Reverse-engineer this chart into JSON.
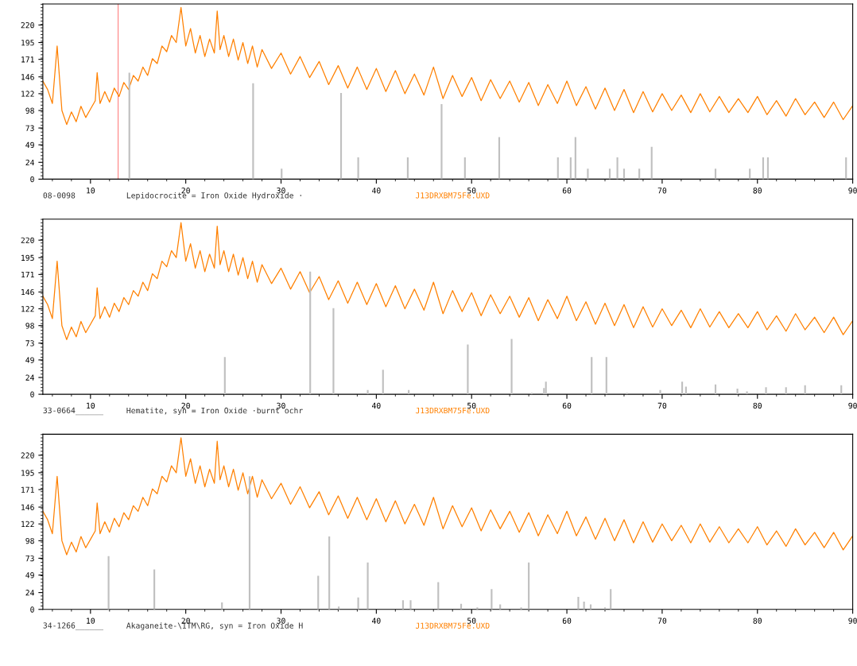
{
  "chart_data": [
    {
      "type": "line",
      "xlim": [
        5,
        90
      ],
      "ylim": [
        0,
        250
      ],
      "xticks": [
        10,
        20,
        30,
        40,
        50,
        60,
        70,
        80,
        90
      ],
      "yticks": [
        0,
        24,
        49,
        73,
        98,
        122,
        146,
        171,
        195,
        220
      ],
      "grid": false,
      "legend": false,
      "annotations": [
        "08-0098",
        "Lepidocrocite = Iron Oxide Hydroxide ·",
        "J13DRXBM75Fe.UXD"
      ],
      "ref_lines": [
        {
          "axis": "x",
          "value": 12.9,
          "color": "#ff8080"
        }
      ],
      "series": [
        {
          "color": "#ff8000",
          "x": [
            5,
            5.5,
            6,
            6.5,
            7,
            7.5,
            8,
            8.5,
            9,
            9.5,
            10,
            10.5,
            10.7,
            11,
            11.5,
            12,
            12.5,
            13,
            13.5,
            14,
            14.5,
            15,
            15.5,
            16,
            16.5,
            17,
            17.5,
            18,
            18.5,
            19,
            19.5,
            20,
            20.5,
            21,
            21.5,
            22,
            22.5,
            23,
            23.3,
            23.6,
            24,
            24.5,
            25,
            25.5,
            26,
            26.5,
            27,
            27.5,
            28,
            29,
            30,
            31,
            32,
            33,
            34,
            35,
            36,
            37,
            38,
            39,
            40,
            41,
            42,
            43,
            44,
            45,
            46,
            47,
            48,
            49,
            50,
            51,
            52,
            53,
            54,
            55,
            56,
            57,
            58,
            59,
            60,
            61,
            62,
            63,
            64,
            65,
            66,
            67,
            68,
            69,
            70,
            71,
            72,
            73,
            74,
            75,
            76,
            77,
            78,
            79,
            80,
            81,
            82,
            83,
            84,
            85,
            86,
            87,
            88,
            89,
            90
          ],
          "values": [
            140,
            128,
            108,
            190,
            98,
            78,
            96,
            82,
            104,
            88,
            100,
            112,
            152,
            108,
            125,
            110,
            130,
            118,
            138,
            128,
            148,
            140,
            160,
            148,
            172,
            165,
            190,
            182,
            205,
            195,
            245,
            190,
            215,
            180,
            205,
            175,
            200,
            180,
            240,
            185,
            205,
            175,
            200,
            170,
            195,
            165,
            190,
            160,
            185,
            158,
            180,
            150,
            175,
            145,
            168,
            135,
            162,
            130,
            160,
            128,
            158,
            125,
            155,
            122,
            150,
            120,
            160,
            115,
            148,
            118,
            145,
            112,
            142,
            115,
            140,
            110,
            138,
            105,
            135,
            108,
            140,
            105,
            132,
            100,
            130,
            98,
            128,
            95,
            125,
            96,
            122,
            98,
            120,
            95,
            122,
            96,
            118,
            95,
            115,
            95,
            118,
            92,
            112,
            90,
            115,
            92,
            110,
            88,
            110,
            85,
            105
          ]
        },
        {
          "type": "bar",
          "color": "#c0c0c0",
          "x": [
            14.08,
            27.07,
            30.06,
            36.3,
            38.1,
            43.3,
            46.85,
            49.3,
            52.9,
            59.06,
            60.4,
            60.9,
            62.2,
            64.5,
            65.3,
            66.0,
            67.6,
            68.9,
            75.6,
            79.2,
            80.6,
            81.1,
            89.3
          ],
          "values": [
            152,
            137,
            15,
            123,
            31,
            31,
            107,
            31,
            60,
            31,
            31,
            60,
            15,
            15,
            31,
            15,
            15,
            46,
            15,
            15,
            31,
            31,
            31
          ]
        }
      ]
    },
    {
      "type": "line",
      "xlim": [
        5,
        90
      ],
      "ylim": [
        0,
        250
      ],
      "xticks": [
        10,
        20,
        30,
        40,
        50,
        60,
        70,
        80,
        90
      ],
      "yticks": [
        0,
        24,
        49,
        73,
        98,
        122,
        146,
        171,
        195,
        220
      ],
      "grid": false,
      "legend": false,
      "annotations": [
        "33-0664______",
        "Hematite, syn = Iron Oxide ·burnt ochr",
        "J13DRXBM75Fe.UXD"
      ],
      "series": [
        {
          "color": "#ff8000",
          "x": [
            5,
            5.5,
            6,
            6.5,
            7,
            7.5,
            8,
            8.5,
            9,
            9.5,
            10,
            10.5,
            10.7,
            11,
            11.5,
            12,
            12.5,
            13,
            13.5,
            14,
            14.5,
            15,
            15.5,
            16,
            16.5,
            17,
            17.5,
            18,
            18.5,
            19,
            19.5,
            20,
            20.5,
            21,
            21.5,
            22,
            22.5,
            23,
            23.3,
            23.6,
            24,
            24.5,
            25,
            25.5,
            26,
            26.5,
            27,
            27.5,
            28,
            29,
            30,
            31,
            32,
            33,
            34,
            35,
            36,
            37,
            38,
            39,
            40,
            41,
            42,
            43,
            44,
            45,
            46,
            47,
            48,
            49,
            50,
            51,
            52,
            53,
            54,
            55,
            56,
            57,
            58,
            59,
            60,
            61,
            62,
            63,
            64,
            65,
            66,
            67,
            68,
            69,
            70,
            71,
            72,
            73,
            74,
            75,
            76,
            77,
            78,
            79,
            80,
            81,
            82,
            83,
            84,
            85,
            86,
            87,
            88,
            89,
            90
          ],
          "values": [
            140,
            128,
            108,
            190,
            98,
            78,
            96,
            82,
            104,
            88,
            100,
            112,
            152,
            108,
            125,
            110,
            130,
            118,
            138,
            128,
            148,
            140,
            160,
            148,
            172,
            165,
            190,
            182,
            205,
            195,
            245,
            190,
            215,
            180,
            205,
            175,
            200,
            180,
            240,
            185,
            205,
            175,
            200,
            170,
            195,
            165,
            190,
            160,
            185,
            158,
            180,
            150,
            175,
            145,
            168,
            135,
            162,
            130,
            160,
            128,
            158,
            125,
            155,
            122,
            150,
            120,
            160,
            115,
            148,
            118,
            145,
            112,
            142,
            115,
            140,
            110,
            138,
            105,
            135,
            108,
            140,
            105,
            132,
            100,
            130,
            98,
            128,
            95,
            125,
            96,
            122,
            98,
            120,
            95,
            122,
            96,
            118,
            95,
            115,
            95,
            118,
            92,
            112,
            90,
            115,
            92,
            110,
            88,
            110,
            85,
            105
          ]
        },
        {
          "type": "bar",
          "color": "#c0c0c0",
          "x": [
            24.1,
            33.06,
            35.5,
            39.1,
            40.7,
            43.4,
            49.6,
            54.2,
            56.3,
            57.6,
            57.8,
            62.6,
            64.15,
            66.3,
            69.8,
            72.1,
            72.5,
            75.6,
            77.9,
            78.9,
            80.9,
            83.0,
            85.0,
            88.8
          ],
          "values": [
            53,
            175,
            123,
            6,
            35,
            6,
            71,
            79,
            2,
            9,
            18,
            53,
            53,
            2,
            6,
            18,
            11,
            14,
            8,
            4,
            10,
            10,
            13,
            13
          ]
        }
      ]
    },
    {
      "type": "line",
      "xlim": [
        5,
        90
      ],
      "ylim": [
        0,
        250
      ],
      "xticks": [
        10,
        20,
        30,
        40,
        50,
        60,
        70,
        80,
        90
      ],
      "yticks": [
        0,
        24,
        49,
        73,
        98,
        122,
        146,
        171,
        195,
        220
      ],
      "grid": false,
      "legend": false,
      "annotations": [
        "34-1266______",
        "Akaganeite-\\ITM\\RG, syn = Iron Oxide H",
        "J13DRXBM75Fe.UXD"
      ],
      "series": [
        {
          "color": "#ff8000",
          "x": [
            5,
            5.5,
            6,
            6.5,
            7,
            7.5,
            8,
            8.5,
            9,
            9.5,
            10,
            10.5,
            10.7,
            11,
            11.5,
            12,
            12.5,
            13,
            13.5,
            14,
            14.5,
            15,
            15.5,
            16,
            16.5,
            17,
            17.5,
            18,
            18.5,
            19,
            19.5,
            20,
            20.5,
            21,
            21.5,
            22,
            22.5,
            23,
            23.3,
            23.6,
            24,
            24.5,
            25,
            25.5,
            26,
            26.5,
            27,
            27.5,
            28,
            29,
            30,
            31,
            32,
            33,
            34,
            35,
            36,
            37,
            38,
            39,
            40,
            41,
            42,
            43,
            44,
            45,
            46,
            47,
            48,
            49,
            50,
            51,
            52,
            53,
            54,
            55,
            56,
            57,
            58,
            59,
            60,
            61,
            62,
            63,
            64,
            65,
            66,
            67,
            68,
            69,
            70,
            71,
            72,
            73,
            74,
            75,
            76,
            77,
            78,
            79,
            80,
            81,
            82,
            83,
            84,
            85,
            86,
            87,
            88,
            89,
            90
          ],
          "values": [
            140,
            128,
            108,
            190,
            98,
            78,
            96,
            82,
            104,
            88,
            100,
            112,
            152,
            108,
            125,
            110,
            130,
            118,
            138,
            128,
            148,
            140,
            160,
            148,
            172,
            165,
            190,
            182,
            205,
            195,
            245,
            190,
            215,
            180,
            205,
            175,
            200,
            180,
            240,
            185,
            205,
            175,
            200,
            170,
            195,
            165,
            190,
            160,
            185,
            158,
            180,
            150,
            175,
            145,
            168,
            135,
            162,
            130,
            160,
            128,
            158,
            125,
            155,
            122,
            150,
            120,
            160,
            115,
            148,
            118,
            145,
            112,
            142,
            115,
            140,
            110,
            138,
            105,
            135,
            108,
            140,
            105,
            132,
            100,
            130,
            98,
            128,
            95,
            125,
            96,
            122,
            98,
            120,
            95,
            122,
            96,
            118,
            95,
            115,
            95,
            118,
            92,
            112,
            90,
            115,
            92,
            110,
            88,
            110,
            85,
            105
          ]
        },
        {
          "type": "bar",
          "color": "#c0c0c0",
          "x": [
            11.9,
            16.7,
            23.8,
            26.7,
            33.9,
            35.06,
            36.06,
            38.1,
            39.1,
            42.8,
            43.6,
            46.5,
            48.9,
            50.6,
            52.1,
            53.0,
            55.2,
            56.0,
            61.2,
            61.8,
            62.5,
            64.0,
            64.6
          ],
          "values": [
            76,
            57,
            10,
            190,
            48,
            104,
            4,
            17,
            67,
            13,
            13,
            39,
            8,
            3,
            29,
            7,
            3,
            67,
            18,
            11,
            7,
            3,
            29
          ]
        }
      ]
    }
  ]
}
